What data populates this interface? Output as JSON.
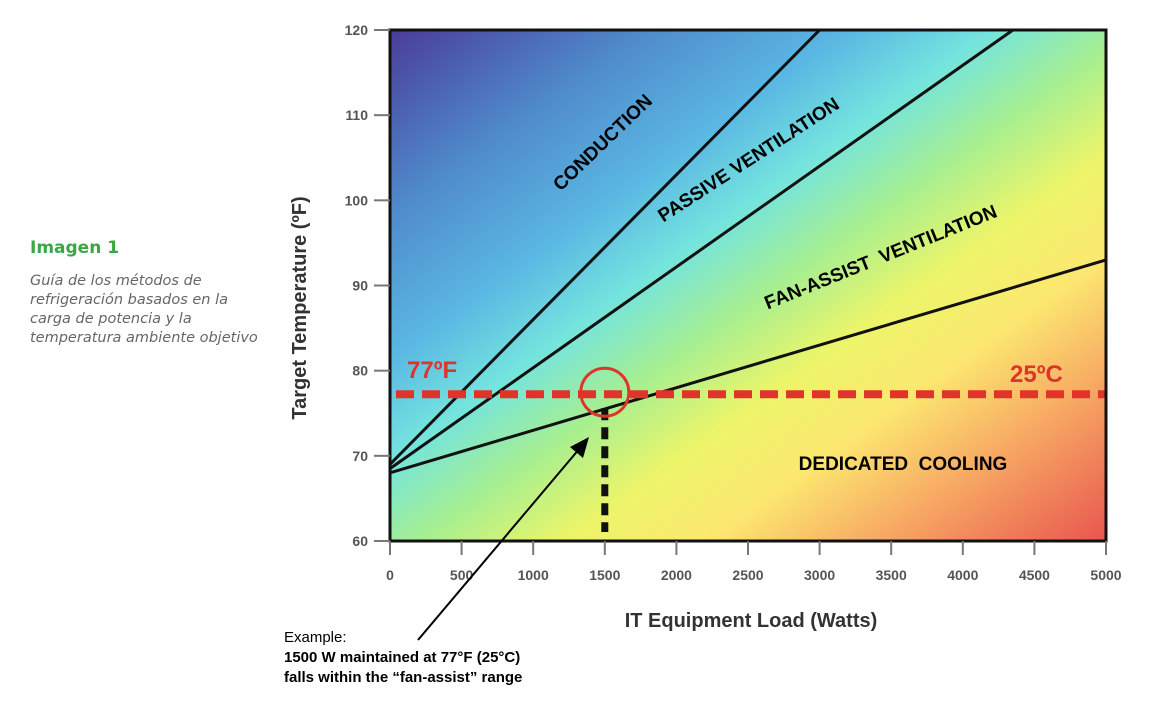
{
  "caption": {
    "title": "Imagen 1",
    "text": "Guía de los métodos de refrigeración basados en la carga de potencia y la temperatura ambiente objetivo"
  },
  "chart_data": {
    "type": "area",
    "xlabel": "IT Equipment Load (Watts)",
    "ylabel": "Target Temperature (ºF)",
    "xlim": [
      0,
      5000
    ],
    "ylim": [
      60,
      120
    ],
    "x_ticks": [
      0,
      500,
      1000,
      1500,
      2000,
      2500,
      3000,
      3500,
      4000,
      4500,
      5000
    ],
    "y_ticks": [
      60,
      70,
      80,
      90,
      100,
      110,
      120
    ],
    "boundaries": [
      {
        "name": "conduction / passive ventilation",
        "points": [
          [
            0,
            69
          ],
          [
            3000,
            120
          ]
        ]
      },
      {
        "name": "passive / fan-assist ventilation",
        "points": [
          [
            0,
            68.5
          ],
          [
            4350,
            120
          ]
        ]
      },
      {
        "name": "fan-assist ventilation / dedicated cooling",
        "points": [
          [
            0,
            68
          ],
          [
            5000,
            93
          ]
        ]
      }
    ],
    "regions": [
      "CONDUCTION",
      "PASSIVE VENTILATION",
      "FAN-ASSIST  VENTILATION",
      "DEDICATED  COOLING"
    ],
    "reference_line": {
      "y": 77,
      "label_left": "77ºF",
      "label_right": "25ºC",
      "color": "#e0342a"
    },
    "marker": {
      "x": 1500,
      "y": 77
    }
  },
  "example": {
    "line1": "Example:",
    "line2": "1500 W maintained at 77°F (25°C)",
    "line3": "falls within the “fan-assist” range"
  }
}
